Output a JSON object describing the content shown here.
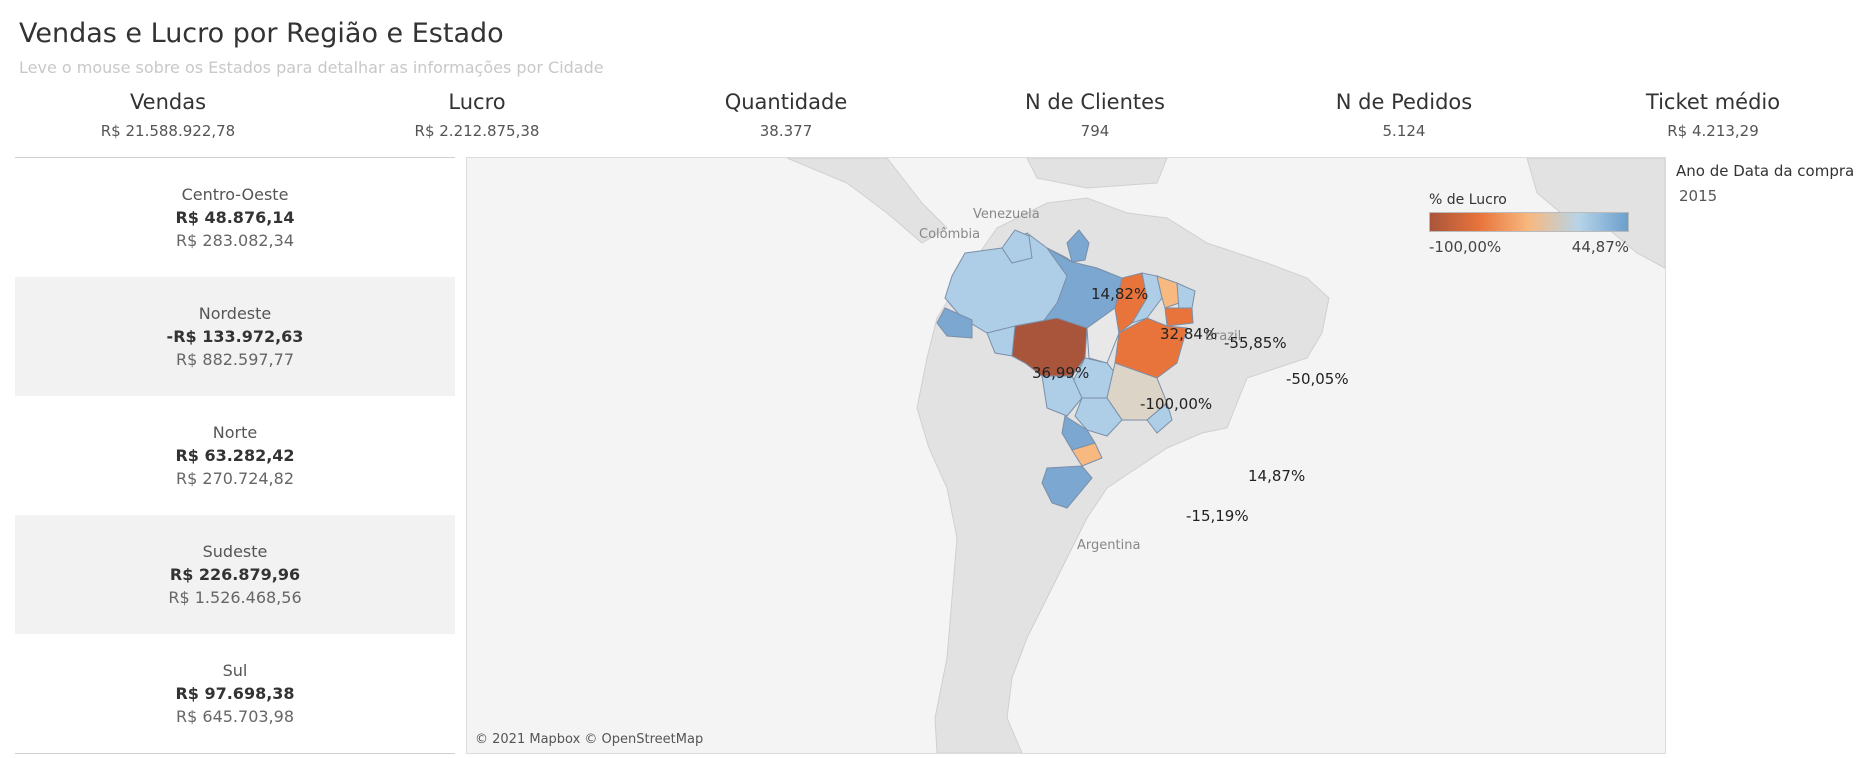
{
  "header": {
    "title": "Vendas e Lucro por Região e Estado",
    "subtitle": "Leve o mouse sobre os Estados para detalhar as informações por Cidade"
  },
  "kpis": [
    {
      "label": "Vendas",
      "value": "R$ 21.588.922,78"
    },
    {
      "label": "Lucro",
      "value": "R$ 2.212.875,38"
    },
    {
      "label": "Quantidade",
      "value": "38.377"
    },
    {
      "label": "N de Clientes",
      "value": "794"
    },
    {
      "label": "N de Pedidos",
      "value": "5.124"
    },
    {
      "label": "Ticket médio",
      "value": "R$ 4.213,29"
    }
  ],
  "regions": [
    {
      "name": "Centro-Oeste",
      "profit": "R$  48.876,14",
      "sales": "R$  283.082,34"
    },
    {
      "name": "Nordeste",
      "profit": "-R$  133.972,63",
      "sales": "R$  882.597,77"
    },
    {
      "name": "Norte",
      "profit": "R$  63.282,42",
      "sales": "R$  270.724,82"
    },
    {
      "name": "Sudeste",
      "profit": "R$  226.879,96",
      "sales": "R$  1.526.468,56"
    },
    {
      "name": "Sul",
      "profit": "R$  97.698,38",
      "sales": "R$  645.703,98"
    }
  ],
  "map": {
    "country_labels": {
      "venezuela": "Venezuela",
      "colombia": "Colômbia",
      "brazil": "Brazil",
      "argentina": "Argentina"
    },
    "profit_labels": {
      "norte": "14,82%",
      "para": "32,84%",
      "acre": "36,99%",
      "piaui": "-55,85%",
      "bahia": "-50,05%",
      "mato_grosso": "-100,00%",
      "sao_paulo": "14,87%",
      "rio_grande_sul": "-15,19%"
    },
    "credit": "© 2021 Mapbox © OpenStreetMap",
    "colors": {
      "dark_orange": "#a9553b",
      "orange": "#e8743b",
      "light_orange": "#f7b980",
      "light_blue": "#aecde6",
      "blue": "#7ba7d0",
      "beige": "#ddd4c8"
    }
  },
  "legend": {
    "title": "% de Lucro",
    "min_label": "-100,00%",
    "max_label": "44,87%"
  },
  "filter": {
    "title": "Ano de Data da compra",
    "value": "2015"
  }
}
